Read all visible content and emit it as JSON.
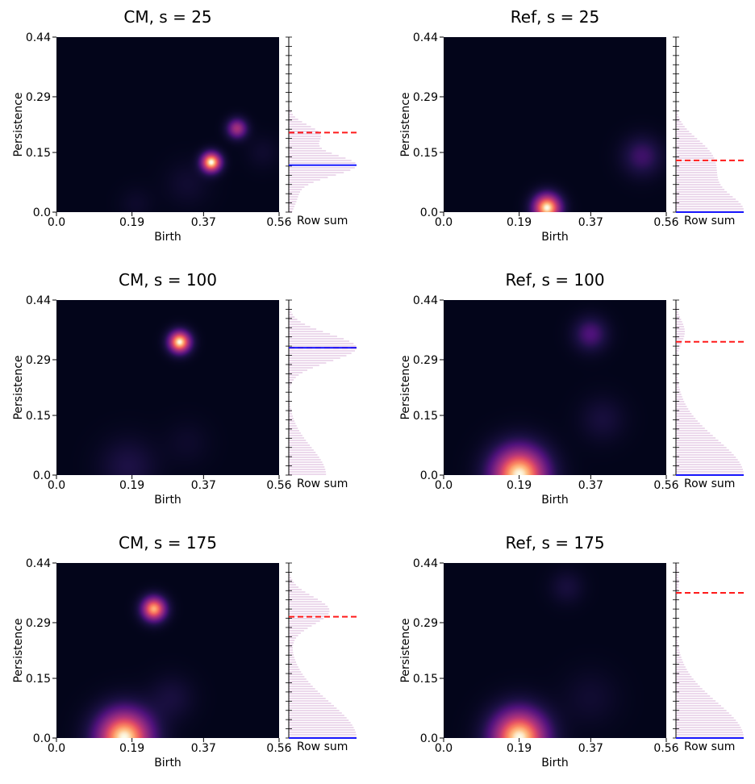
{
  "chart_data": [
    {
      "type": "heatmap",
      "title": "CM, s = 25",
      "xlabel": "Birth",
      "ylabel": "Persistence",
      "side_label": "Row sum",
      "xticks": [
        "0.0",
        "0.19",
        "0.37",
        "0.56"
      ],
      "yticks": [
        "0.0",
        "0.15",
        "0.29",
        "0.44"
      ],
      "xlim": [
        0,
        0.56
      ],
      "ylim": [
        0,
        0.44
      ],
      "blobs": [
        {
          "x": 0.39,
          "y": 0.125,
          "sigma": 0.018,
          "intensity": 1.0
        },
        {
          "x": 0.455,
          "y": 0.21,
          "sigma": 0.018,
          "intensity": 0.55
        },
        {
          "x": 0.33,
          "y": 0.07,
          "sigma": 0.04,
          "intensity": 0.08
        },
        {
          "x": 0.2,
          "y": 0.02,
          "sigma": 0.03,
          "intensity": 0.06
        },
        {
          "x": 0.52,
          "y": 0.15,
          "sigma": 0.03,
          "intensity": 0.07
        }
      ],
      "row_sum_peaks": [
        {
          "y": 0.118,
          "sigma": 0.028,
          "height": 1.0
        },
        {
          "y": 0.195,
          "sigma": 0.025,
          "height": 0.45
        },
        {
          "y": 0.04,
          "sigma": 0.03,
          "height": 0.12
        }
      ],
      "red_dashed_line": 0.2,
      "blue_line": 0.118
    },
    {
      "type": "heatmap",
      "title": "Ref, s = 25",
      "xlabel": "Birth",
      "ylabel": "Persistence",
      "side_label": "Row sum",
      "xticks": [
        "0.0",
        "0.19",
        "0.37",
        "0.56"
      ],
      "yticks": [
        "0.0",
        "0.15",
        "0.29",
        "0.44"
      ],
      "xlim": [
        0,
        0.56
      ],
      "ylim": [
        0,
        0.44
      ],
      "blobs": [
        {
          "x": 0.26,
          "y": 0.01,
          "sigma": 0.025,
          "intensity": 1.0
        },
        {
          "x": 0.5,
          "y": 0.14,
          "sigma": 0.035,
          "intensity": 0.25
        }
      ],
      "row_sum_peaks": [
        {
          "y": 0.0,
          "sigma": 0.045,
          "height": 1.0
        },
        {
          "y": 0.1,
          "sigma": 0.045,
          "height": 0.45
        },
        {
          "y": 0.16,
          "sigma": 0.04,
          "height": 0.3
        }
      ],
      "red_dashed_line": 0.13,
      "blue_line": 0.0
    },
    {
      "type": "heatmap",
      "title": "CM, s = 100",
      "xlabel": "Birth",
      "ylabel": "Persistence",
      "side_label": "Row sum",
      "xticks": [
        "0.0",
        "0.19",
        "0.37",
        "0.56"
      ],
      "yticks": [
        "0.0",
        "0.15",
        "0.29",
        "0.44"
      ],
      "xlim": [
        0,
        0.56
      ],
      "ylim": [
        0,
        0.44
      ],
      "blobs": [
        {
          "x": 0.31,
          "y": 0.335,
          "sigma": 0.02,
          "intensity": 1.0
        },
        {
          "x": 0.18,
          "y": 0.02,
          "sigma": 0.05,
          "intensity": 0.15
        },
        {
          "x": 0.33,
          "y": 0.08,
          "sigma": 0.04,
          "intensity": 0.06
        }
      ],
      "row_sum_peaks": [
        {
          "y": 0.32,
          "sigma": 0.035,
          "height": 1.0
        },
        {
          "y": 0.0,
          "sigma": 0.07,
          "height": 0.55
        }
      ],
      "red_dashed_line": 0.32,
      "blue_line": 0.32
    },
    {
      "type": "heatmap",
      "title": "Ref, s = 100",
      "xlabel": "Birth",
      "ylabel": "Persistence",
      "side_label": "Row sum",
      "xticks": [
        "0.0",
        "0.19",
        "0.37",
        "0.56"
      ],
      "yticks": [
        "0.0",
        "0.15",
        "0.29",
        "0.44"
      ],
      "xlim": [
        0,
        0.56
      ],
      "ylim": [
        0,
        0.44
      ],
      "blobs": [
        {
          "x": 0.19,
          "y": 0.0,
          "sigma": 0.05,
          "intensity": 1.0
        },
        {
          "x": 0.37,
          "y": 0.355,
          "sigma": 0.03,
          "intensity": 0.3
        },
        {
          "x": 0.4,
          "y": 0.14,
          "sigma": 0.04,
          "intensity": 0.12
        }
      ],
      "row_sum_peaks": [
        {
          "y": 0.0,
          "sigma": 0.09,
          "height": 1.0
        },
        {
          "y": 0.36,
          "sigma": 0.03,
          "height": 0.13
        }
      ],
      "red_dashed_line": 0.335,
      "blue_line": 0.0
    },
    {
      "type": "heatmap",
      "title": "CM, s = 175",
      "xlabel": "Birth",
      "ylabel": "Persistence",
      "side_label": "Row sum",
      "xticks": [
        "0.0",
        "0.19",
        "0.37",
        "0.56"
      ],
      "yticks": [
        "0.0",
        "0.15",
        "0.29",
        "0.44"
      ],
      "xlim": [
        0,
        0.56
      ],
      "ylim": [
        0,
        0.44
      ],
      "blobs": [
        {
          "x": 0.245,
          "y": 0.325,
          "sigma": 0.022,
          "intensity": 0.9
        },
        {
          "x": 0.17,
          "y": 0.0,
          "sigma": 0.05,
          "intensity": 1.0
        },
        {
          "x": 0.29,
          "y": 0.1,
          "sigma": 0.04,
          "intensity": 0.12
        }
      ],
      "row_sum_peaks": [
        {
          "y": 0.32,
          "sigma": 0.035,
          "height": 0.6
        },
        {
          "y": 0.0,
          "sigma": 0.09,
          "height": 1.0
        }
      ],
      "red_dashed_line": 0.305,
      "blue_line": 0.0
    },
    {
      "type": "heatmap",
      "title": "Ref, s = 175",
      "xlabel": "Birth",
      "ylabel": "Persistence",
      "side_label": "Row sum",
      "xticks": [
        "0.0",
        "0.19",
        "0.37",
        "0.56"
      ],
      "yticks": [
        "0.0",
        "0.15",
        "0.29",
        "0.44"
      ],
      "xlim": [
        0,
        0.56
      ],
      "ylim": [
        0,
        0.44
      ],
      "blobs": [
        {
          "x": 0.19,
          "y": 0.0,
          "sigma": 0.05,
          "intensity": 1.0
        },
        {
          "x": 0.31,
          "y": 0.38,
          "sigma": 0.03,
          "intensity": 0.12
        },
        {
          "x": 0.37,
          "y": 0.1,
          "sigma": 0.05,
          "intensity": 0.08
        }
      ],
      "row_sum_peaks": [
        {
          "y": 0.0,
          "sigma": 0.09,
          "height": 1.0
        },
        {
          "y": 0.39,
          "sigma": 0.03,
          "height": 0.04
        }
      ],
      "red_dashed_line": 0.365,
      "blue_line": 0.0
    }
  ],
  "colors": {
    "background": "#03051a",
    "red_line": "#ff1a1a",
    "blue_line": "#1a1aff",
    "hatch": "#d9b3d9"
  }
}
